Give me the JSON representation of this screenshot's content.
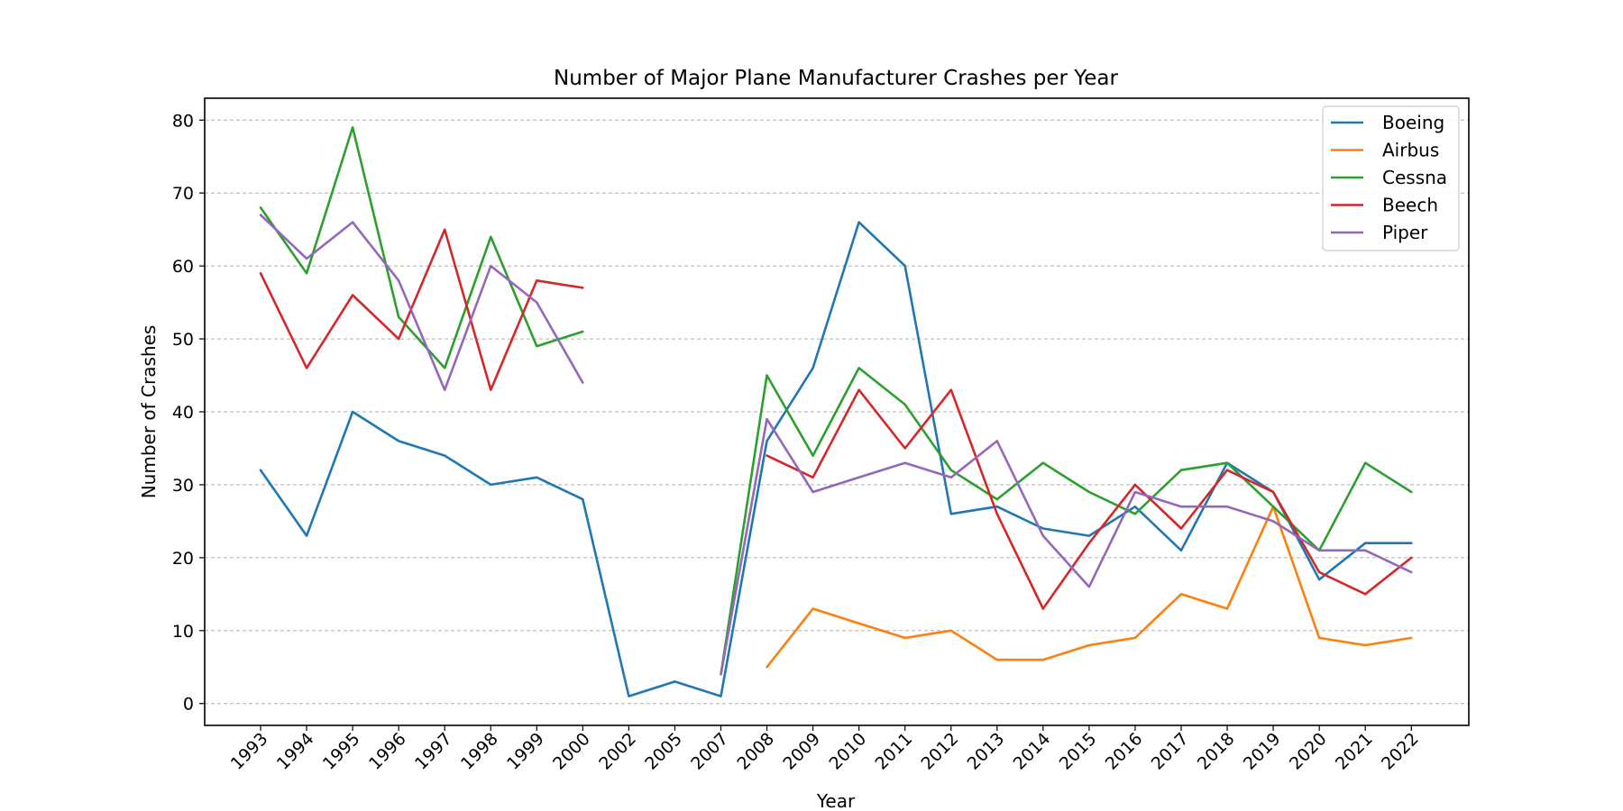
{
  "chart_data": {
    "type": "line",
    "title": "Number of Major Plane Manufacturer Crashes per Year",
    "xlabel": "Year",
    "ylabel": "Number of Crashes",
    "categories": [
      "1993",
      "1994",
      "1995",
      "1996",
      "1997",
      "1998",
      "1999",
      "2000",
      "2002",
      "2005",
      "2007",
      "2008",
      "2009",
      "2010",
      "2011",
      "2012",
      "2013",
      "2014",
      "2015",
      "2016",
      "2017",
      "2018",
      "2019",
      "2020",
      "2021",
      "2022"
    ],
    "ylim": [
      -3,
      83
    ],
    "yticks": [
      0,
      10,
      20,
      30,
      40,
      50,
      60,
      70,
      80
    ],
    "grid": "y",
    "legend_position": "top-right",
    "series": [
      {
        "name": "Boeing",
        "color": "#1f77b4",
        "values": [
          32,
          23,
          40,
          36,
          34,
          30,
          31,
          28,
          1,
          3,
          1,
          36,
          46,
          66,
          60,
          26,
          27,
          24,
          23,
          27,
          21,
          33,
          29,
          17,
          22,
          22
        ]
      },
      {
        "name": "Airbus",
        "color": "#ff7f0e",
        "values": [
          null,
          null,
          null,
          null,
          null,
          null,
          null,
          null,
          null,
          null,
          null,
          5,
          13,
          11,
          9,
          10,
          6,
          6,
          8,
          9,
          15,
          13,
          27,
          9,
          8,
          9
        ]
      },
      {
        "name": "Cessna",
        "color": "#2ca02c",
        "values": [
          68,
          59,
          79,
          53,
          46,
          64,
          49,
          51,
          null,
          null,
          4,
          45,
          34,
          46,
          41,
          32,
          28,
          33,
          29,
          26,
          32,
          33,
          27,
          21,
          33,
          29
        ]
      },
      {
        "name": "Beech",
        "color": "#d62728",
        "values": [
          59,
          46,
          56,
          50,
          65,
          43,
          58,
          57,
          null,
          null,
          null,
          34,
          31,
          43,
          35,
          43,
          26,
          13,
          22,
          30,
          24,
          32,
          29,
          18,
          15,
          20
        ]
      },
      {
        "name": "Piper",
        "color": "#9467bd",
        "values": [
          67,
          61,
          66,
          58,
          43,
          60,
          55,
          44,
          null,
          null,
          4,
          39,
          29,
          31,
          33,
          31,
          36,
          23,
          16,
          29,
          27,
          27,
          25,
          21,
          21,
          18
        ]
      }
    ]
  }
}
